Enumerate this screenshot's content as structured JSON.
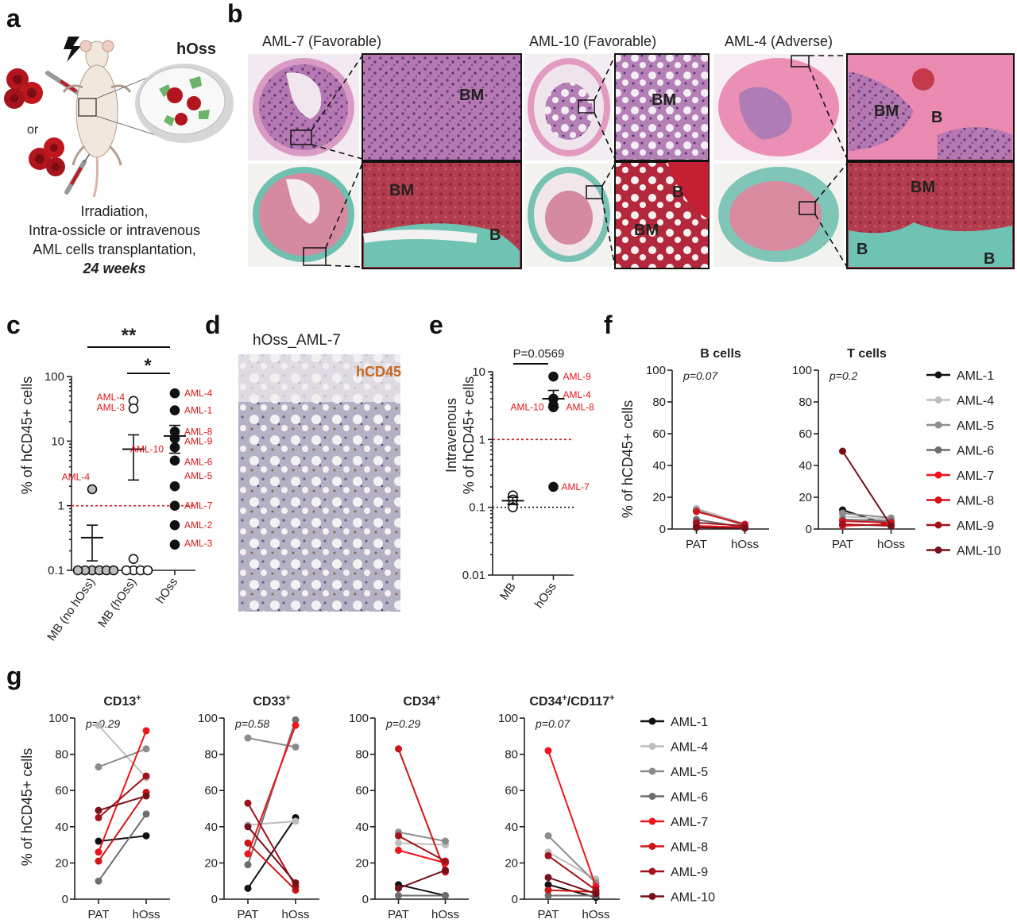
{
  "panels": {
    "a": {
      "label": "a",
      "hoss": "hOss",
      "or": "or",
      "caption": [
        "Irradiation,",
        "Intra-ossicle or intravenous",
        "AML cells transplantation,"
      ],
      "caption_bold": "24 weeks"
    },
    "b": {
      "label": "b",
      "titles": [
        "AML-7 (Favorable)",
        "AML-10 (Favorable)",
        "AML-4 (Adverse)"
      ],
      "region_bm": "BM",
      "region_b": "B"
    },
    "c": {
      "label": "c",
      "ylabel": "% of hCD45+ cells",
      "sig1": "**",
      "sig2": "*"
    },
    "d": {
      "label": "d",
      "title": "hOss_AML-7",
      "stain": "hCD45"
    },
    "e": {
      "label": "e",
      "ylabel1": "Intravenous",
      "ylabel2": "% of hCD45+ cells",
      "pvalue": "P=0.0569"
    },
    "f": {
      "label": "f",
      "ylabel": "% of hCD45+ cells"
    },
    "g": {
      "label": "g",
      "ylabel": "% of hCD45+ cells"
    }
  },
  "legend": [
    {
      "name": "AML-1",
      "color": "#111111"
    },
    {
      "name": "AML-4",
      "color": "#bdbdbd"
    },
    {
      "name": "AML-5",
      "color": "#8c8c8c"
    },
    {
      "name": "AML-6",
      "color": "#6e6e6e"
    },
    {
      "name": "AML-7",
      "color": "#f0141c"
    },
    {
      "name": "AML-8",
      "color": "#cf1418"
    },
    {
      "name": "AML-9",
      "color": "#a3101a"
    },
    {
      "name": "AML-10",
      "color": "#761019"
    }
  ],
  "chart_data": [
    {
      "id": "c",
      "type": "scatter",
      "yscale": "log",
      "ylim": [
        0.1,
        100
      ],
      "yticks": [
        "0.1",
        "1",
        "10",
        "100"
      ],
      "categories": [
        "MB (no hOss)",
        "MB (hOss)",
        "hOss"
      ],
      "threshold": 1,
      "groups": [
        {
          "category": "MB (no hOss)",
          "fill": "#bdbdbd",
          "values": [
            1.8,
            0.1,
            0.1,
            0.1,
            0.1,
            0.1,
            0.1
          ],
          "mean": 0.32,
          "sem": [
            0.14,
            0.5
          ]
        },
        {
          "category": "MB (hOss)",
          "fill": "#ffffff",
          "values": [
            42,
            32,
            0.15,
            0.1,
            0.1,
            0.1,
            0.1
          ],
          "mean": 7.5,
          "sem": [
            2.5,
            12.5
          ]
        },
        {
          "category": "hOss",
          "fill": "#111111",
          "values": [
            55,
            30,
            14,
            11,
            8,
            5,
            2,
            1,
            0.5,
            0.25
          ],
          "mean": 12,
          "sem": [
            6.5,
            17.5
          ]
        }
      ],
      "annotations": [
        {
          "text": "AML-4",
          "category": "MB (no hOss)",
          "y": 2.8
        },
        {
          "text": "AML-4",
          "category": "MB (hOss)",
          "y": 48
        },
        {
          "text": "AML-3",
          "category": "MB (hOss)",
          "y": 33
        },
        {
          "text": "AML-10",
          "category": "MB (hOss)",
          "y": 7.5
        },
        {
          "text": "AML-4",
          "category": "hOss",
          "y": 55
        },
        {
          "text": "AML-1",
          "category": "hOss",
          "y": 30
        },
        {
          "text": "AML-8",
          "category": "hOss",
          "y": 14
        },
        {
          "text": "AML-9",
          "category": "hOss",
          "y": 10
        },
        {
          "text": "AML-6",
          "category": "hOss",
          "y": 4.8
        },
        {
          "text": "AML-5",
          "category": "hOss",
          "y": 2.9
        },
        {
          "text": "AML-7",
          "category": "hOss",
          "y": 1.0
        },
        {
          "text": "AML-2",
          "category": "hOss",
          "y": 0.5
        },
        {
          "text": "AML-3",
          "category": "hOss",
          "y": 0.26
        }
      ]
    },
    {
      "id": "e",
      "type": "scatter",
      "yscale": "log",
      "ylim": [
        0.01,
        10
      ],
      "yticks": [
        "0.01",
        "0.1",
        "1",
        "10"
      ],
      "categories": [
        "MB",
        "hOss"
      ],
      "threshold": 1,
      "baseline": 0.1,
      "groups": [
        {
          "category": "MB",
          "fill": "#ffffff",
          "values": [
            0.15,
            0.13,
            0.11,
            0.1
          ],
          "mean": 0.125,
          "sem": [
            0.11,
            0.14
          ]
        },
        {
          "category": "hOss",
          "fill": "#111111",
          "values": [
            8.5,
            4.0,
            3.2,
            3.0,
            0.2
          ],
          "mean": 4.0,
          "sem": [
            3.0,
            5.3
          ]
        }
      ],
      "annotations": [
        {
          "text": "AML-9",
          "category": "hOss",
          "y": 8.5
        },
        {
          "text": "AML-4",
          "category": "hOss",
          "y": 4.6
        },
        {
          "text": "AML-10",
          "category": "hOss",
          "y": 3.0
        },
        {
          "text": "AML-8",
          "category": "hOss",
          "y": 3.0
        },
        {
          "text": "AML-7",
          "category": "hOss",
          "y": 0.2
        }
      ]
    },
    {
      "id": "f-b",
      "type": "line",
      "title": "B cells",
      "pvalue": "p=0.07",
      "x": [
        "PAT",
        "hOss"
      ],
      "ylim": [
        0,
        100
      ],
      "yticks": [
        "0",
        "20",
        "40",
        "60",
        "80",
        "100"
      ],
      "series": [
        {
          "name": "AML-1",
          "values": [
            1,
            1
          ]
        },
        {
          "name": "AML-4",
          "values": [
            13,
            3
          ]
        },
        {
          "name": "AML-5",
          "values": [
            12,
            2
          ]
        },
        {
          "name": "AML-6",
          "values": [
            6,
            1
          ]
        },
        {
          "name": "AML-7",
          "values": [
            2,
            1
          ]
        },
        {
          "name": "AML-8",
          "values": [
            11,
            3
          ]
        },
        {
          "name": "AML-9",
          "values": [
            4,
            2
          ]
        },
        {
          "name": "AML-10",
          "values": [
            1,
            0.5
          ]
        }
      ]
    },
    {
      "id": "f-t",
      "type": "line",
      "title": "T cells",
      "pvalue": "p=0.2",
      "x": [
        "PAT",
        "hOss"
      ],
      "ylim": [
        0,
        100
      ],
      "yticks": [
        "0",
        "20",
        "40",
        "60",
        "80",
        "100"
      ],
      "series": [
        {
          "name": "AML-1",
          "values": [
            12,
            2
          ]
        },
        {
          "name": "AML-4",
          "values": [
            8,
            6
          ]
        },
        {
          "name": "AML-5",
          "values": [
            10,
            7
          ]
        },
        {
          "name": "AML-6",
          "values": [
            6,
            5
          ]
        },
        {
          "name": "AML-7",
          "values": [
            2,
            3
          ]
        },
        {
          "name": "AML-8",
          "values": [
            5,
            4
          ]
        },
        {
          "name": "AML-9",
          "values": [
            3,
            2
          ]
        },
        {
          "name": "AML-10",
          "values": [
            49,
            2
          ]
        }
      ]
    },
    {
      "id": "g-cd13",
      "type": "line",
      "title": "CD13",
      "title_sup": "+",
      "pvalue": "p=0.29",
      "x": [
        "PAT",
        "hOss"
      ],
      "ylim": [
        0,
        100
      ],
      "yticks": [
        "0",
        "20",
        "40",
        "60",
        "80",
        "100"
      ],
      "series": [
        {
          "name": "AML-1",
          "values": [
            32,
            35
          ]
        },
        {
          "name": "AML-4",
          "values": [
            96,
            67
          ]
        },
        {
          "name": "AML-5",
          "values": [
            73,
            83
          ]
        },
        {
          "name": "AML-6",
          "values": [
            10,
            47
          ]
        },
        {
          "name": "AML-7",
          "values": [
            26,
            93
          ]
        },
        {
          "name": "AML-8",
          "values": [
            21,
            59
          ]
        },
        {
          "name": "AML-9",
          "values": [
            45,
            68
          ]
        },
        {
          "name": "AML-10",
          "values": [
            49,
            57
          ]
        }
      ]
    },
    {
      "id": "g-cd33",
      "type": "line",
      "title": "CD33",
      "title_sup": "+",
      "pvalue": "p=0.58",
      "x": [
        "PAT",
        "hOss"
      ],
      "ylim": [
        0,
        100
      ],
      "yticks": [
        "0",
        "20",
        "40",
        "60",
        "80",
        "100"
      ],
      "series": [
        {
          "name": "AML-1",
          "values": [
            6,
            45
          ]
        },
        {
          "name": "AML-4",
          "values": [
            41,
            43
          ]
        },
        {
          "name": "AML-5",
          "values": [
            89,
            84
          ]
        },
        {
          "name": "AML-6",
          "values": [
            19,
            99
          ]
        },
        {
          "name": "AML-7",
          "values": [
            25,
            96
          ]
        },
        {
          "name": "AML-8",
          "values": [
            31,
            5
          ]
        },
        {
          "name": "AML-9",
          "values": [
            53,
            7
          ]
        },
        {
          "name": "AML-10",
          "values": [
            40,
            9
          ]
        }
      ]
    },
    {
      "id": "g-cd34",
      "type": "line",
      "title": "CD34",
      "title_sup": "+",
      "pvalue": "p=0.29",
      "x": [
        "PAT",
        "hOss"
      ],
      "ylim": [
        0,
        100
      ],
      "yticks": [
        "0",
        "20",
        "40",
        "60",
        "80",
        "100"
      ],
      "series": [
        {
          "name": "AML-1",
          "values": [
            8,
            2
          ]
        },
        {
          "name": "AML-4",
          "values": [
            31,
            30
          ]
        },
        {
          "name": "AML-5",
          "values": [
            37,
            32
          ]
        },
        {
          "name": "AML-6",
          "values": [
            2,
            2
          ]
        },
        {
          "name": "AML-7",
          "values": [
            27,
            20
          ]
        },
        {
          "name": "AML-8",
          "values": [
            83,
            15
          ]
        },
        {
          "name": "AML-9",
          "values": [
            35,
            21
          ]
        },
        {
          "name": "AML-10",
          "values": [
            6,
            16
          ]
        }
      ]
    },
    {
      "id": "g-cd34cd117",
      "type": "line",
      "title": "CD34",
      "title_sup": "+",
      "title2": "/CD117",
      "title2_sup": "+",
      "pvalue": "p=0.07",
      "x": [
        "PAT",
        "hOss"
      ],
      "ylim": [
        0,
        100
      ],
      "yticks": [
        "0",
        "20",
        "40",
        "60",
        "80",
        "100"
      ],
      "series": [
        {
          "name": "AML-1",
          "values": [
            8,
            1
          ]
        },
        {
          "name": "AML-4",
          "values": [
            26,
            11
          ]
        },
        {
          "name": "AML-5",
          "values": [
            35,
            9
          ]
        },
        {
          "name": "AML-6",
          "values": [
            2,
            2
          ]
        },
        {
          "name": "AML-7",
          "values": [
            82,
            7
          ]
        },
        {
          "name": "AML-8",
          "values": [
            5,
            4
          ]
        },
        {
          "name": "AML-9",
          "values": [
            24,
            5
          ]
        },
        {
          "name": "AML-10",
          "values": [
            12,
            3
          ]
        }
      ]
    }
  ]
}
